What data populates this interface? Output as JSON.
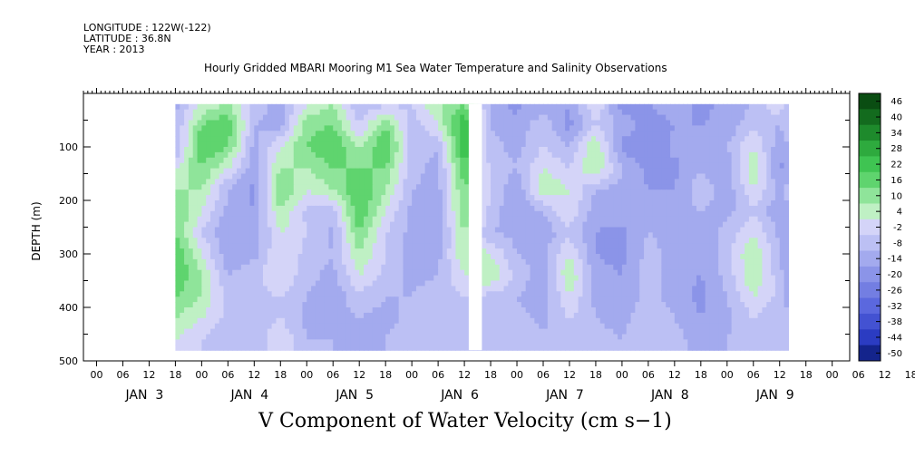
{
  "header": {
    "longitude": "LONGITUDE : 122W(-122)",
    "latitude": "LATITUDE : 36.8N",
    "year": "YEAR : 2013"
  },
  "colors": {
    "green": "#3fdc5a",
    "light_green": "#a8eeb0",
    "lavender": "#c8c8f4",
    "periwinkle": "#a5acee",
    "blue": "#7d88e8",
    "deep_blue": "#5b68de"
  },
  "chart_data": {
    "type": "heatmap",
    "title": "Hourly Gridded MBARI Mooring M1 Sea Water Temperature and Salinity Observations",
    "xlabel": "V Component of Water Velocity (cm s−1)",
    "ylabel": "DEPTH (m)",
    "ylim": [
      500,
      0
    ],
    "y_ticks": [
      100,
      200,
      300,
      400,
      500
    ],
    "x_hour_labels": [
      "00",
      "06",
      "12",
      "18",
      "00",
      "06",
      "12",
      "18",
      "00",
      "06",
      "12",
      "18",
      "00",
      "06",
      "12",
      "18",
      "00",
      "06",
      "12",
      "18",
      "00",
      "06",
      "12",
      "18",
      "00",
      "06",
      "12",
      "18",
      "00",
      "06",
      "12",
      "18"
    ],
    "x_day_labels": [
      "JAN  3",
      "JAN  4",
      "JAN  5",
      "JAN  6",
      "JAN  7",
      "JAN  8",
      "JAN  9"
    ],
    "colorbar_levels": [
      "46",
      "40",
      "34",
      "28",
      "22",
      "16",
      "10",
      "4",
      "-2",
      "-8",
      "-14",
      "-20",
      "-26",
      "-32",
      "-38",
      "-44",
      "-50"
    ],
    "colorbar_colors": [
      "#0a4d12",
      "#136b1e",
      "#1e8a2c",
      "#2eaa3e",
      "#3fc452",
      "#5fd46e",
      "#8fe49a",
      "#bff0c4",
      "#d4d4f8",
      "#bcc0f4",
      "#a3aaee",
      "#8b94e8",
      "#737ee2",
      "#5b68de",
      "#4352d2",
      "#2b3cc2",
      "#14248c"
    ],
    "rows_depth_m": [
      20,
      60,
      100,
      140,
      180,
      220,
      260,
      300,
      340,
      380,
      420,
      460
    ],
    "columns_hour": [
      0,
      6,
      12,
      18,
      24,
      30,
      36,
      42,
      48,
      54,
      60,
      66,
      72,
      78,
      84,
      90,
      96,
      102,
      108,
      114,
      120,
      126,
      132,
      138,
      140
    ],
    "values": [
      [
        -10,
        4,
        10,
        -4,
        -12,
        4,
        10,
        -8,
        -4,
        -2,
        10,
        16,
        -10,
        -16,
        -10,
        -14,
        4,
        -18,
        -14,
        -10,
        -16,
        -12,
        -8,
        4,
        -10
      ],
      [
        -8,
        16,
        22,
        -8,
        -10,
        14,
        16,
        -2,
        16,
        -6,
        4,
        28,
        -8,
        -12,
        -4,
        -16,
        -2,
        -10,
        -18,
        -14,
        -14,
        -12,
        -4,
        -8,
        -4
      ],
      [
        -10,
        22,
        16,
        -10,
        4,
        16,
        22,
        10,
        22,
        -4,
        -8,
        28,
        -6,
        -10,
        -2,
        -8,
        10,
        -16,
        -20,
        -12,
        -10,
        -8,
        4,
        -12,
        -8
      ],
      [
        4,
        16,
        4,
        -12,
        10,
        10,
        16,
        16,
        16,
        -6,
        -10,
        22,
        -4,
        -8,
        4,
        -2,
        10,
        -8,
        -16,
        -16,
        -8,
        -14,
        10,
        -16,
        -10
      ],
      [
        10,
        10,
        -8,
        -16,
        16,
        4,
        10,
        22,
        10,
        -8,
        -10,
        16,
        -2,
        -14,
        10,
        4,
        -8,
        -10,
        -14,
        -14,
        -4,
        -12,
        4,
        -10,
        -6
      ],
      [
        16,
        4,
        -10,
        -14,
        10,
        -4,
        -4,
        22,
        4,
        -10,
        -12,
        16,
        -4,
        -14,
        -8,
        4,
        -12,
        -10,
        -12,
        -10,
        -8,
        -10,
        -4,
        -12,
        -8
      ],
      [
        16,
        -2,
        -14,
        -12,
        4,
        -2,
        -10,
        16,
        -2,
        -10,
        -12,
        10,
        -8,
        -10,
        -12,
        -4,
        -14,
        -16,
        -8,
        -10,
        -12,
        -6,
        4,
        -10,
        -12
      ],
      [
        22,
        4,
        -12,
        -10,
        4,
        -4,
        -8,
        10,
        -2,
        -12,
        -10,
        10,
        4,
        -8,
        -10,
        4,
        -14,
        -16,
        -6,
        -10,
        -14,
        -4,
        10,
        -8,
        -14
      ],
      [
        22,
        10,
        -8,
        -4,
        4,
        -6,
        -10,
        4,
        -4,
        -10,
        -8,
        4,
        10,
        -4,
        -12,
        10,
        -12,
        -14,
        -4,
        -12,
        -14,
        -6,
        10,
        -6,
        -12
      ],
      [
        16,
        10,
        -4,
        -4,
        -2,
        -8,
        -12,
        -4,
        -8,
        -8,
        -4,
        -2,
        -4,
        -8,
        -12,
        4,
        -10,
        -12,
        -6,
        -10,
        -16,
        -8,
        4,
        -4,
        -10
      ],
      [
        10,
        4,
        -4,
        -6,
        -2,
        -10,
        -10,
        -8,
        -10,
        -6,
        -4,
        -4,
        -8,
        -6,
        -10,
        -2,
        -8,
        -10,
        -4,
        -8,
        -14,
        -10,
        -2,
        -6,
        -8
      ],
      [
        4,
        -2,
        -6,
        -8,
        4,
        -8,
        -8,
        -10,
        -8,
        -4,
        -6,
        -8,
        -8,
        -4,
        -6,
        -4,
        -6,
        -8,
        -4,
        -6,
        -10,
        -8,
        -4,
        -4,
        -6
      ]
    ],
    "gaps": [
      [
        67,
        70
      ]
    ],
    "colorbar_location": "right"
  }
}
